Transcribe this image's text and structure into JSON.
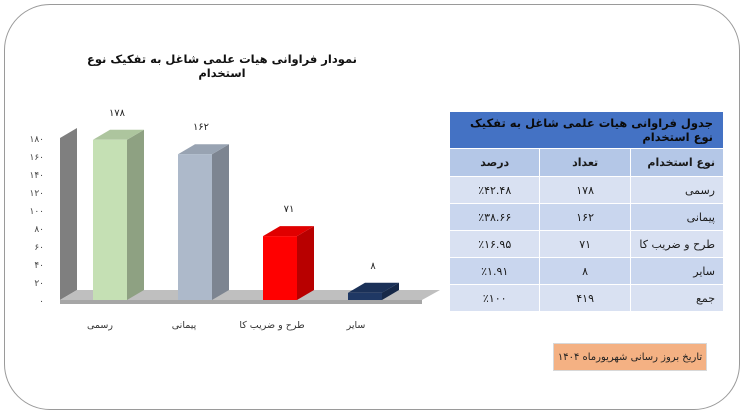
{
  "chart_data": {
    "type": "bar",
    "title": "نمودار فراوانی هیات علمی شاغل به تفکیک نوع استخدام",
    "categories": [
      "رسمی",
      "پیمانی",
      "طرح و ضریب کا",
      "سایر"
    ],
    "values": [
      178,
      162,
      71,
      8
    ],
    "value_labels": [
      "۱۷۸",
      "۱۶۲",
      "۷۱",
      "۸"
    ],
    "ylim": [
      0,
      180
    ],
    "yticks": [
      0,
      20,
      40,
      60,
      80,
      100,
      120,
      140,
      160,
      180
    ],
    "ytick_labels": [
      "۰",
      "۲۰",
      "۴۰",
      "۶۰",
      "۸۰",
      "۱۰۰",
      "۱۲۰",
      "۱۴۰",
      "۱۶۰",
      "۱۸۰"
    ],
    "bar_colors": [
      "#c5e0b4",
      "#adb9ca",
      "#ff0000",
      "#1f3864"
    ],
    "grid": false,
    "legend": "none"
  },
  "table": {
    "title": "جدول فراوانی هیات علمی شاغل به تفکیک نوع استخدام",
    "headers": {
      "type": "نوع استخدام",
      "count": "تعداد",
      "percent": "درصد"
    },
    "rows": [
      {
        "type": "رسمی",
        "count": "۱۷۸",
        "percent": "٪۴۲.۴۸"
      },
      {
        "type": "پیمانی",
        "count": "۱۶۲",
        "percent": "٪۳۸.۶۶"
      },
      {
        "type": "طرح و ضریب کا",
        "count": "۷۱",
        "percent": "٪۱۶.۹۵"
      },
      {
        "type": "سایر",
        "count": "۸",
        "percent": "٪۱.۹۱"
      },
      {
        "type": "جمع",
        "count": "۴۱۹",
        "percent": "٪۱۰۰"
      }
    ]
  },
  "update_note": "تاریخ بروز رسانی شهریورماه ۱۴۰۴"
}
